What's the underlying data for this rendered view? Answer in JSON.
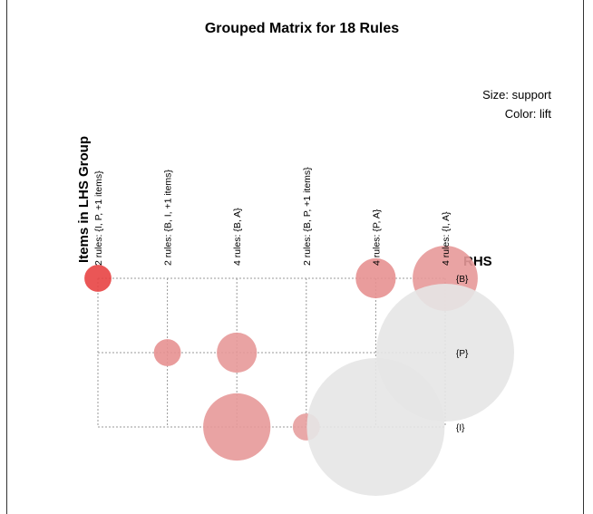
{
  "chart_data": {
    "type": "grouped_matrix",
    "title": "Grouped Matrix for 18 Rules",
    "size_label": "Size: support",
    "color_label": "Color: lift",
    "x_label": "Items in LHS Group",
    "y_label": "RHS",
    "categories": [
      "2 rules: {I, P, +1 items}",
      "2 rules: {B, I, +1 items}",
      "4 rules: {B, A}",
      "2 rules: {B, P, +1 items}",
      "4 rules: {P, A}",
      "4 rules: {I, A}"
    ],
    "rows": [
      "{B}",
      "{P}",
      "{I}"
    ],
    "support": [
      [
        0.01,
        null,
        null,
        null,
        0.022,
        0.058
      ],
      [
        null,
        0.01,
        0.022,
        null,
        null,
        0.26
      ],
      [
        null,
        null,
        0.062,
        0.01,
        0.26,
        null
      ]
    ],
    "lift": [
      [
        2.9,
        null,
        null,
        null,
        2.0,
        1.9
      ],
      [
        null,
        2.0,
        1.9,
        null,
        null,
        1.0
      ],
      [
        null,
        null,
        1.9,
        1.85,
        1.0,
        null
      ]
    ],
    "color_low": "#e6e6e6",
    "color_high": "#e84444"
  }
}
